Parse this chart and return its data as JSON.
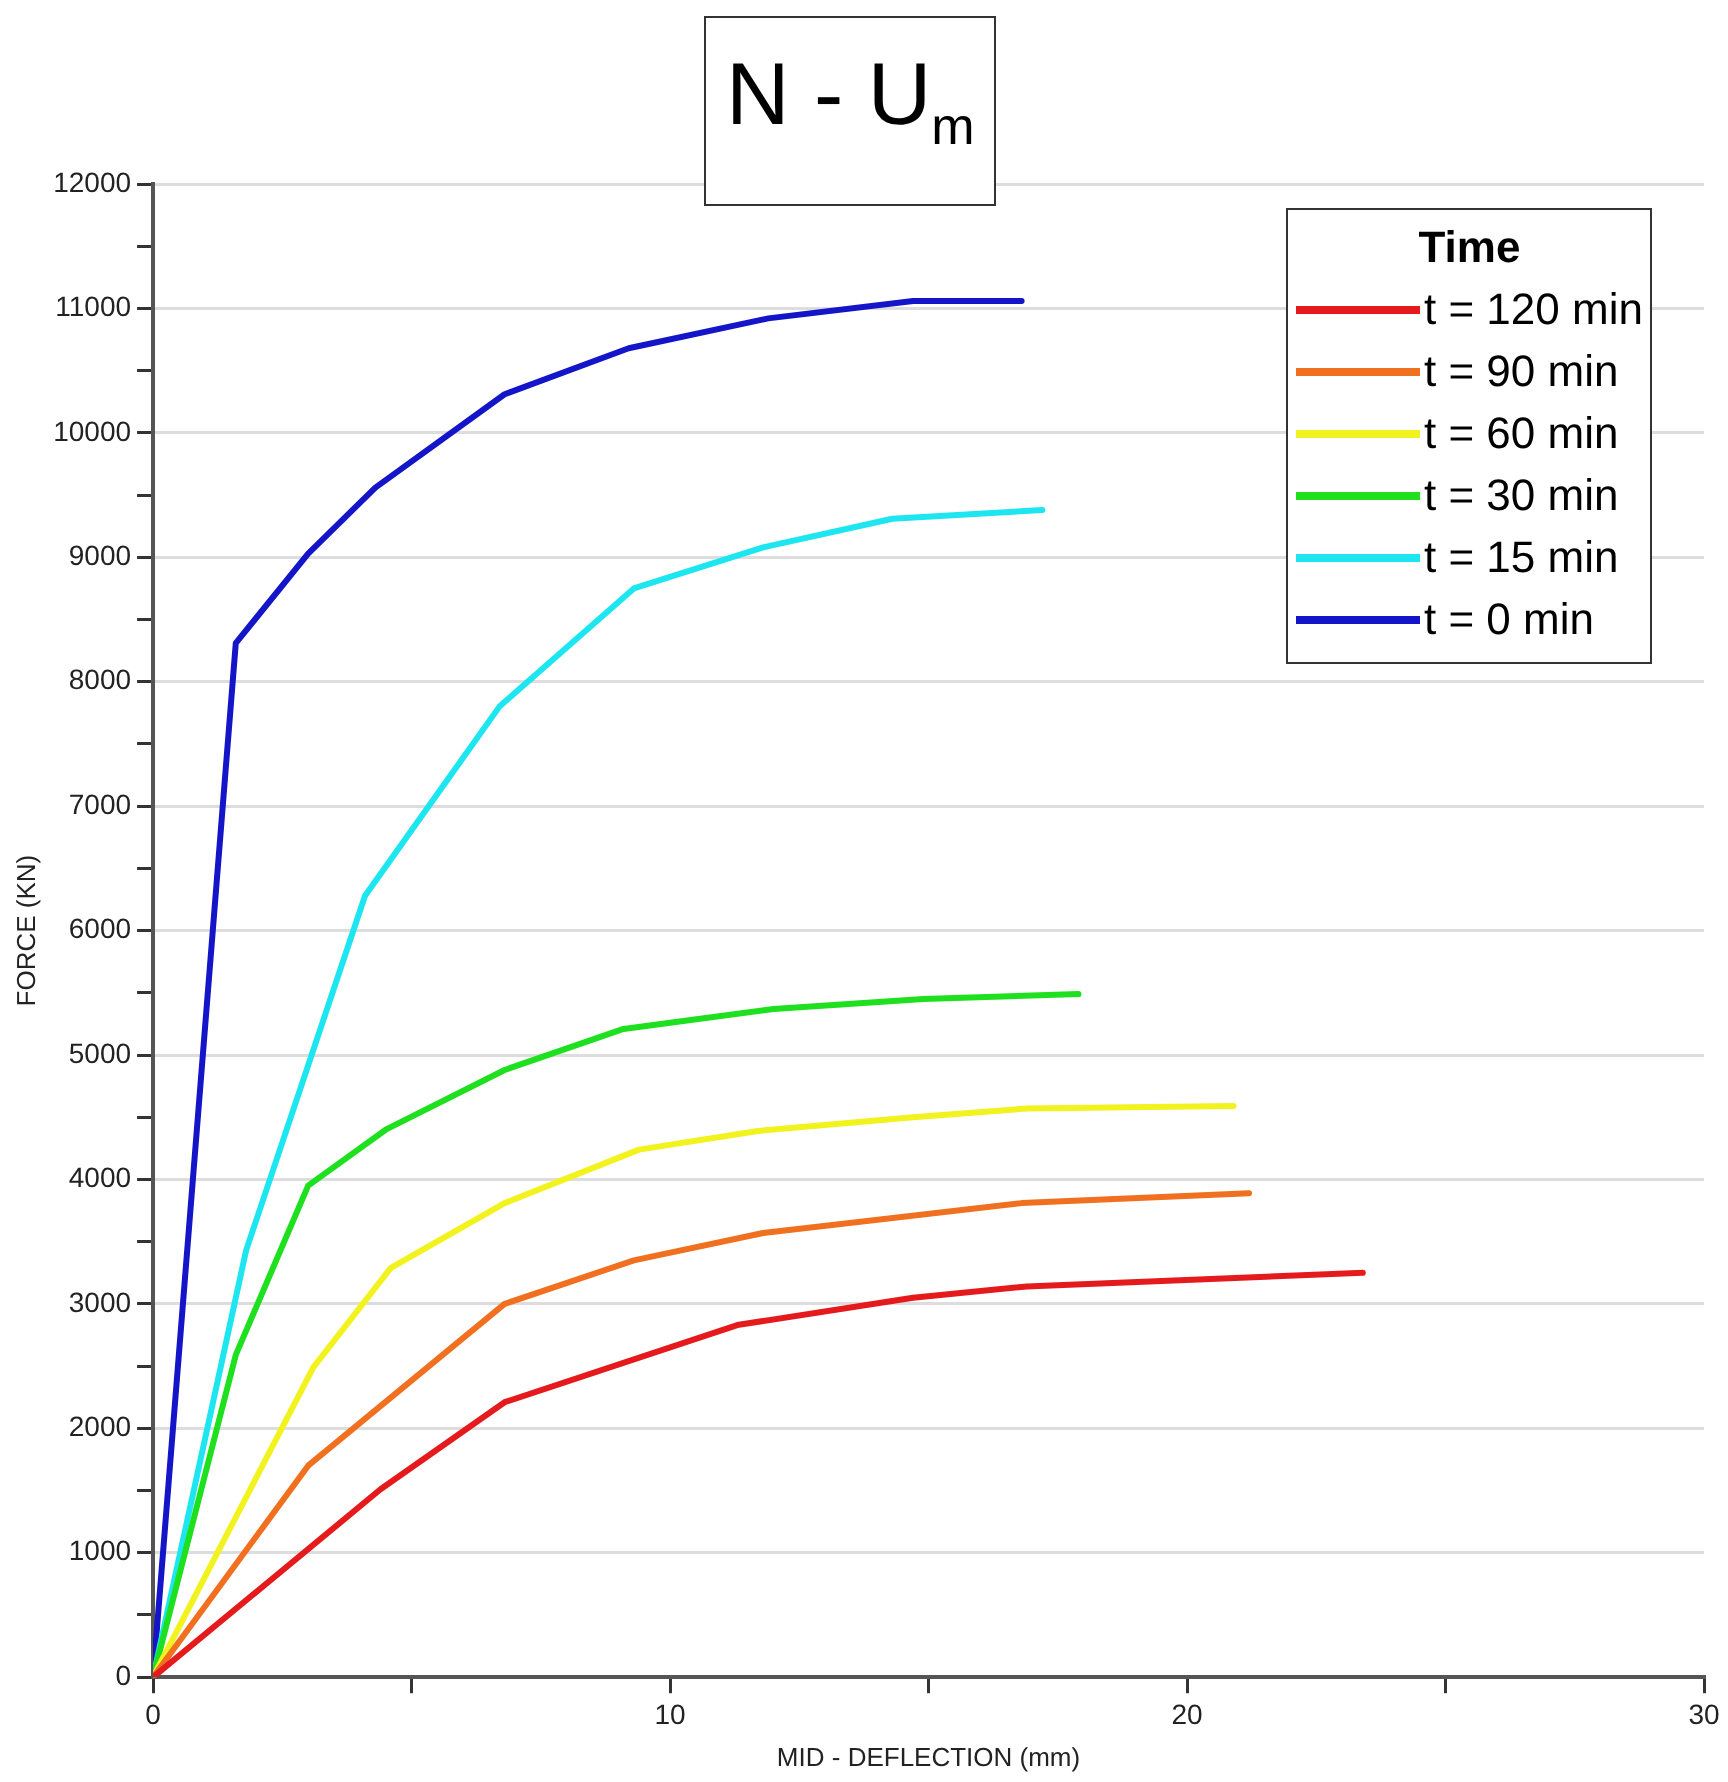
{
  "chart_data": {
    "type": "line",
    "title": "N - U$_{m}$",
    "xlabel": "MID - DEFLECTION (mm)",
    "ylabel": "FORCE (KN)",
    "legend_title": "Time",
    "legend": "top right",
    "grid": "y",
    "marker": "none",
    "line_style": "solid",
    "xlim": [
      0,
      30
    ],
    "xticks": [
      0,
      {
        "value": 5,
        "label": null
      },
      10,
      {
        "value": 15,
        "label": null
      },
      20,
      {
        "value": 25,
        "label": null
      },
      30
    ],
    "ylim": [
      0,
      12000
    ],
    "yticks": [
      0,
      {
        "value": 500,
        "label": null
      },
      1000,
      {
        "value": 1500,
        "label": null
      },
      2000,
      {
        "value": 2500,
        "label": null
      },
      3000,
      {
        "value": 3500,
        "label": null
      },
      4000,
      {
        "value": 4500,
        "label": null
      },
      5000,
      {
        "value": 5500,
        "label": null
      },
      6000,
      {
        "value": 6500,
        "label": null
      },
      7000,
      {
        "value": 7500,
        "label": null
      },
      8000,
      {
        "value": 8500,
        "label": null
      },
      9000,
      {
        "value": 9500,
        "label": null
      },
      10000,
      {
        "value": 10500,
        "label": null
      },
      11000,
      {
        "value": 11500,
        "label": null
      },
      12000
    ],
    "series": [
      {
        "name": "t = 120 min",
        "color": "#e41a1c",
        "x": [
          0,
          4.4,
          6.8,
          11.3,
          14.7,
          16.9,
          23.4
        ],
        "values": [
          0,
          1510,
          2210,
          2830,
          3050,
          3140,
          3250
        ]
      },
      {
        "name": "t = 90 min",
        "color": "#f07020",
        "x": [
          0,
          3.0,
          6.8,
          9.3,
          11.8,
          16.8,
          21.2
        ],
        "values": [
          0,
          1700,
          3000,
          3350,
          3570,
          3810,
          3890
        ]
      },
      {
        "name": "t = 60 min",
        "color": "#f2f21e",
        "x": [
          0,
          3.1,
          4.6,
          6.8,
          9.4,
          11.7,
          14.7,
          16.9,
          20.9
        ],
        "values": [
          0,
          2490,
          3290,
          3810,
          4240,
          4390,
          4500,
          4570,
          4590
        ]
      },
      {
        "name": "t = 30 min",
        "color": "#1ee01e",
        "x": [
          0,
          1.6,
          3.0,
          4.5,
          6.8,
          9.1,
          12.0,
          14.9,
          17.9
        ],
        "values": [
          0,
          2590,
          3950,
          4400,
          4880,
          5210,
          5370,
          5450,
          5490
        ]
      },
      {
        "name": "t = 15 min",
        "color": "#1ee6f0",
        "x": [
          0,
          1.8,
          4.1,
          6.7,
          9.3,
          11.8,
          14.3,
          17.2
        ],
        "values": [
          0,
          3430,
          6280,
          7800,
          8750,
          9080,
          9310,
          9380
        ]
      },
      {
        "name": "t = 0 min",
        "color": "#1414c8",
        "x": [
          0,
          1.6,
          3.0,
          4.3,
          6.8,
          9.2,
          11.9,
          14.7,
          16.8
        ],
        "values": [
          0,
          8310,
          9030,
          9560,
          10310,
          10680,
          10920,
          11060,
          11060
        ]
      }
    ]
  }
}
